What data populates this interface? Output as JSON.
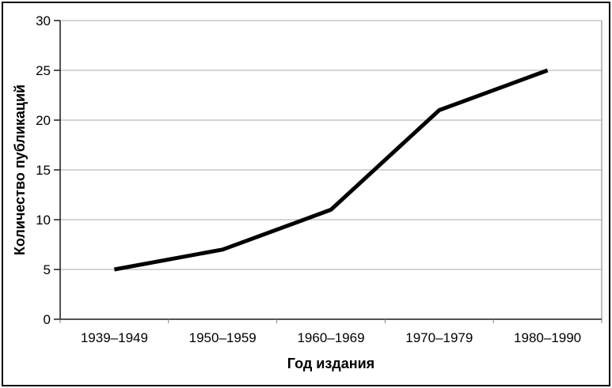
{
  "chart_data": {
    "type": "line",
    "title": "",
    "categories": [
      "1939–1949",
      "1950–1959",
      "1960–1969",
      "1970–1979",
      "1980–1990"
    ],
    "values": [
      5,
      7,
      11,
      21,
      25
    ],
    "series": [
      {
        "name": "Количество публикаций",
        "values": [
          5,
          7,
          11,
          21,
          25
        ]
      }
    ],
    "xlabel": "Год издания",
    "ylabel": "Количество публикаций",
    "ylim": [
      0,
      30
    ],
    "ytick_step": 5,
    "yticks": [
      0,
      5,
      10,
      15,
      20,
      25,
      30
    ],
    "ytick_labels": [
      "0",
      "5",
      "10",
      "15",
      "20",
      "25",
      "30"
    ],
    "grid": "horizontal",
    "legend": "none",
    "colors": {
      "series_line": "#000000",
      "gridline": "#a9a9a9",
      "axis": "#1a1a1a",
      "x_tick": "#808080",
      "plot_border": "#a9a9a9",
      "frame_border": "#000000",
      "background": "#ffffff",
      "text": "#000000"
    },
    "series_line_width": 5
  }
}
